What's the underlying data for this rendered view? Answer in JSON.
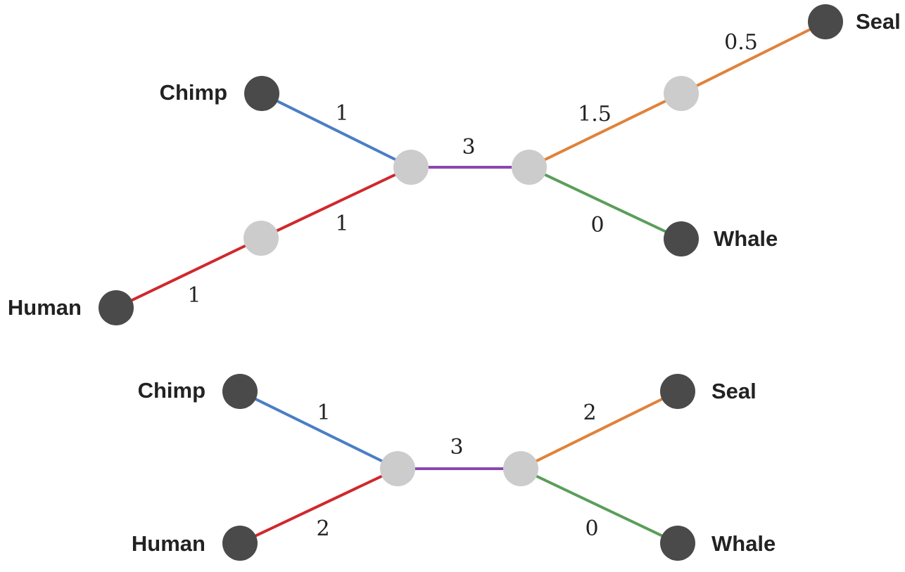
{
  "colors": {
    "blue": "#4a7ec5",
    "red": "#d0282d",
    "purple": "#8b47b0",
    "orange": "#e0823a",
    "green": "#5a9e5a",
    "leaf": "#4a4a4a",
    "internal": "#cccccc"
  },
  "tree_top": {
    "leaves": {
      "chimp": "Chimp",
      "human": "Human",
      "seal": "Seal",
      "whale": "Whale"
    },
    "weights": {
      "chimp_branch": "1",
      "human_inner_branch": "1",
      "human_outer_branch": "1",
      "center_branch": "3",
      "seal_inner_branch": "1.5",
      "seal_outer_branch": "0.5",
      "whale_branch": "0"
    }
  },
  "tree_bottom": {
    "leaves": {
      "chimp": "Chimp",
      "human": "Human",
      "seal": "Seal",
      "whale": "Whale"
    },
    "weights": {
      "chimp_branch": "1",
      "human_branch": "2",
      "center_branch": "3",
      "seal_branch": "2",
      "whale_branch": "0"
    }
  }
}
